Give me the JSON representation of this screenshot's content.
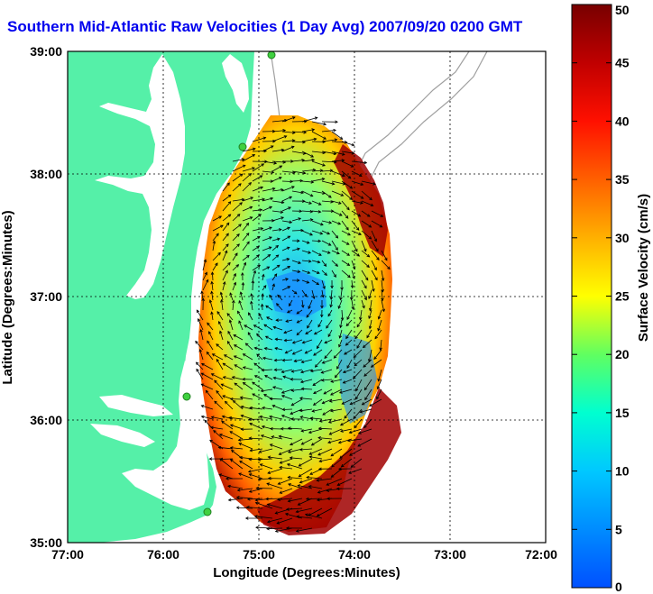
{
  "title": "Southern Mid-Atlantic Raw Velocities (1 Day Avg) 2007/09/20 0200 GMT",
  "xlabel": "Longitude (Degrees:Minutes)",
  "ylabel": "Latitude (Degrees:Minutes)",
  "colorbar_label": "Surface Velocity (cm/s)",
  "x_ticks": [
    "77:00",
    "76:00",
    "75:00",
    "74:00",
    "73:00",
    "72:00"
  ],
  "y_ticks": [
    "39:00",
    "38:00",
    "37:00",
    "36:00",
    "35:00"
  ],
  "colorbar_ticks": [
    "50",
    "45",
    "40",
    "35",
    "30",
    "25",
    "20",
    "15",
    "10",
    "5",
    "0"
  ],
  "colors": {
    "land": "#55f0a8",
    "title": "#0000ee",
    "colorbar_low": "#0055ff",
    "colorbar_high": "#800000"
  }
}
